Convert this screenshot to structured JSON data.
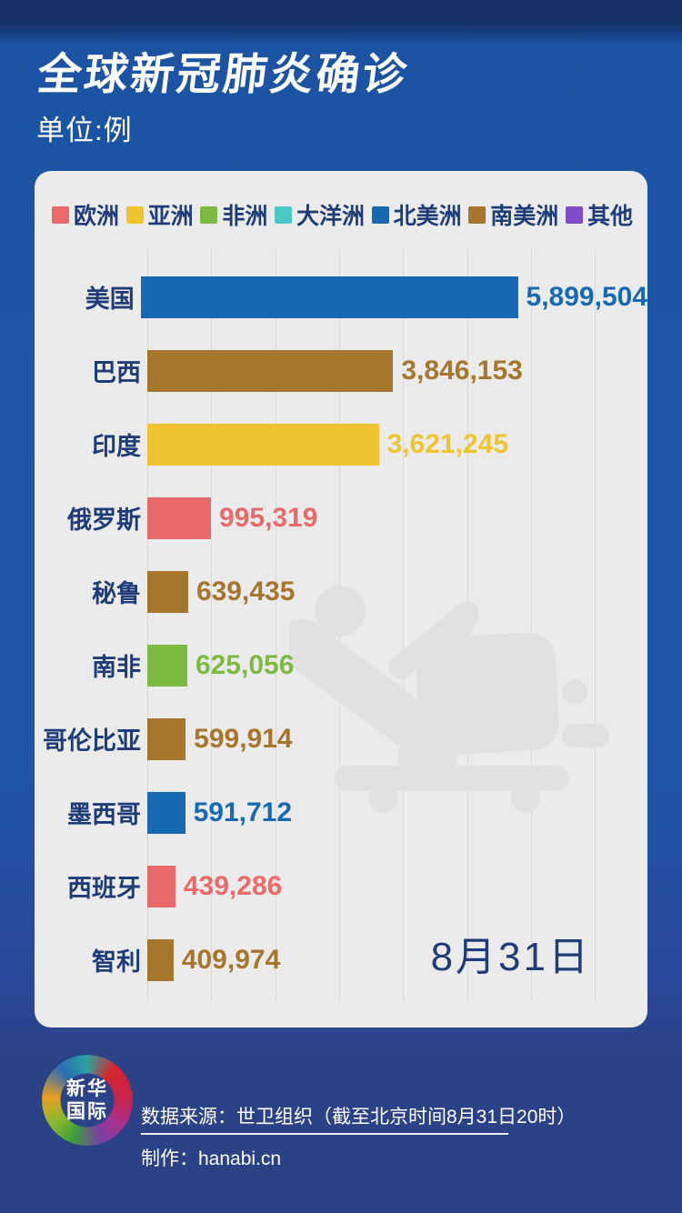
{
  "title": "全球新冠肺炎确诊",
  "subtitle": "单位:例",
  "date_label": "8月31日",
  "colors": {
    "card_bg": "#ecebeb",
    "gridline": "#d9d8d8",
    "label_navy": "#1e3c78",
    "watermark_gray": "#e2e1e1",
    "background_blue": "#1e57a9",
    "footer_blue": "#2b4186"
  },
  "legend": [
    {
      "label": "欧洲",
      "color": "#e96a6b"
    },
    {
      "label": "亚洲",
      "color": "#eec431"
    },
    {
      "label": "非洲",
      "color": "#7cba41"
    },
    {
      "label": "大洋洲",
      "color": "#4cc8c4"
    },
    {
      "label": "北美洲",
      "color": "#176ab1"
    },
    {
      "label": "南美洲",
      "color": "#a6762d"
    },
    {
      "label": "其他",
      "color": "#7e4ec7"
    }
  ],
  "chart_data": {
    "type": "bar",
    "orientation": "horizontal",
    "title": "全球新冠肺炎确诊",
    "unit_label": "单位:例",
    "date": "8月31日",
    "legend_position": "top",
    "x_axis": {
      "min": 0,
      "max": 7000000,
      "gridline_interval": 1000000,
      "grid": true,
      "tick_labels_visible": false
    },
    "categories": [
      "美国",
      "巴西",
      "印度",
      "俄罗斯",
      "秘鲁",
      "南非",
      "哥伦比亚",
      "墨西哥",
      "西班牙",
      "智利"
    ],
    "values": [
      5899504,
      3846153,
      3621245,
      995319,
      639435,
      625056,
      599914,
      591712,
      439286,
      409974
    ],
    "rows": [
      {
        "country": "美国",
        "value": 5899504,
        "value_label": "5,899,504",
        "continent": "北美洲",
        "color": "#176ab1"
      },
      {
        "country": "巴西",
        "value": 3846153,
        "value_label": "3,846,153",
        "continent": "南美洲",
        "color": "#a6762d"
      },
      {
        "country": "印度",
        "value": 3621245,
        "value_label": "3,621,245",
        "continent": "亚洲",
        "color": "#eec431"
      },
      {
        "country": "俄罗斯",
        "value": 995319,
        "value_label": "995,319",
        "continent": "欧洲",
        "color": "#e96a6b"
      },
      {
        "country": "秘鲁",
        "value": 639435,
        "value_label": "639,435",
        "continent": "南美洲",
        "color": "#a6762d"
      },
      {
        "country": "南非",
        "value": 625056,
        "value_label": "625,056",
        "continent": "非洲",
        "color": "#7cba41"
      },
      {
        "country": "哥伦比亚",
        "value": 599914,
        "value_label": "599,914",
        "continent": "南美洲",
        "color": "#a6762d"
      },
      {
        "country": "墨西哥",
        "value": 591712,
        "value_label": "591,712",
        "continent": "北美洲",
        "color": "#176ab1"
      },
      {
        "country": "西班牙",
        "value": 439286,
        "value_label": "439,286",
        "continent": "欧洲",
        "color": "#e96a6b"
      },
      {
        "country": "智利",
        "value": 409974,
        "value_label": "409,974",
        "continent": "南美洲",
        "color": "#a6762d"
      }
    ]
  },
  "footer": {
    "logo_line1": "新华",
    "logo_line2": "国际",
    "source": "数据来源：世卫组织（截至北京时间8月31日20时）",
    "credit": "制作：hanabi.cn"
  }
}
